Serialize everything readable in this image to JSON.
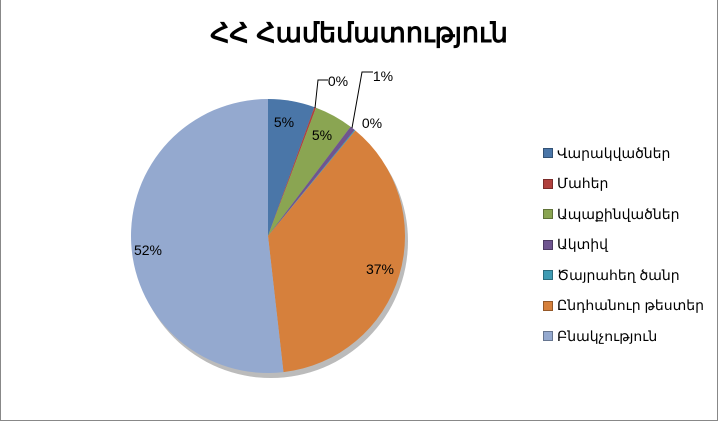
{
  "chart_data": {
    "type": "pie",
    "title": "ՀՀ Համեմատություն",
    "legend_position": "right",
    "slices": [
      {
        "name": "Վարակվածներ",
        "value": 5.5,
        "label": "5%",
        "color": "#4a76a8"
      },
      {
        "name": "Մահեր",
        "value": 0.2,
        "label": "0%",
        "color": "#b0403d"
      },
      {
        "name": "Ապաքինվածներ",
        "value": 4.6,
        "label": "5%",
        "color": "#8aa552"
      },
      {
        "name": "Ակտիվ",
        "value": 0.6,
        "label": "1%",
        "color": "#6f5590"
      },
      {
        "name": "Ծայրահեղ ծանր",
        "value": 0.1,
        "label": "0%",
        "color": "#3f9bb3"
      },
      {
        "name": "Ընդհանուր թեստեր",
        "value": 37.2,
        "label": "37%",
        "color": "#d6803c"
      },
      {
        "name": "Բնակչություն",
        "value": 51.8,
        "label": "52%",
        "color": "#94a9cf"
      }
    ]
  }
}
